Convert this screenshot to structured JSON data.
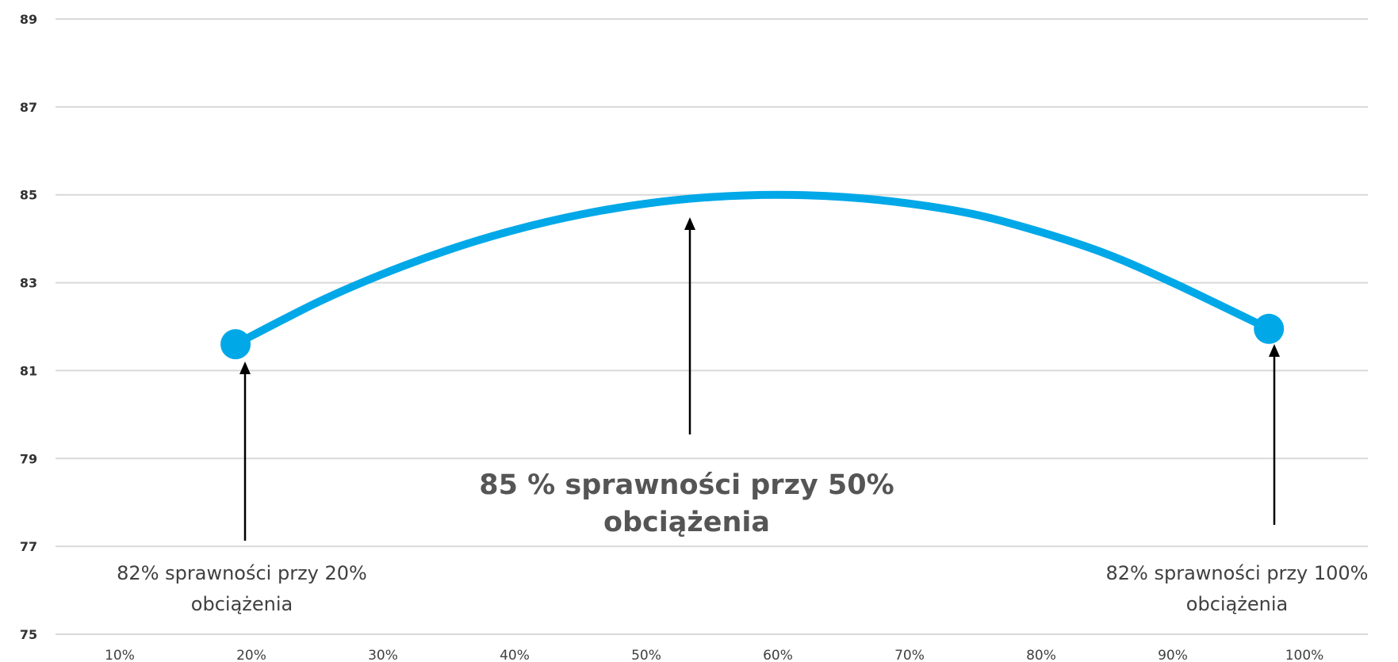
{
  "colors": {
    "series": "#00a8e8",
    "grid": "#d9d9d9",
    "arrow": "#000000"
  },
  "chart_data": {
    "type": "line",
    "title": "",
    "xlabel": "",
    "ylabel": "",
    "x_tick_labels": [
      "10%",
      "20%",
      "30%",
      "40%",
      "50%",
      "60%",
      "70%",
      "80%",
      "90%",
      "100%"
    ],
    "y_ticks": [
      75,
      77,
      79,
      81,
      83,
      85,
      87,
      89
    ],
    "ylim": [
      75,
      89
    ],
    "grid": true,
    "legend": "none",
    "series": [
      {
        "x": [
          18.8,
          25,
          30,
          35,
          40,
          45,
          50,
          55,
          60,
          65,
          70,
          75,
          80,
          85,
          90,
          97.3
        ],
        "y": [
          81.6,
          82.55,
          83.2,
          83.75,
          84.2,
          84.55,
          84.8,
          84.95,
          85.0,
          84.95,
          84.8,
          84.55,
          84.15,
          83.65,
          83.0,
          81.95
        ]
      }
    ],
    "markers": [
      {
        "x": 18.8,
        "y": 81.6
      },
      {
        "x": 97.3,
        "y": 81.95
      }
    ],
    "annotations": [
      {
        "id": "left",
        "lines": [
          "82% sprawności przy 20%",
          "obciążenia"
        ]
      },
      {
        "id": "center",
        "lines": [
          "85 % sprawności przy 50%",
          "obciążenia"
        ]
      },
      {
        "id": "right",
        "lines": [
          "82% sprawności przy 100%",
          "obciążenia"
        ]
      }
    ]
  }
}
